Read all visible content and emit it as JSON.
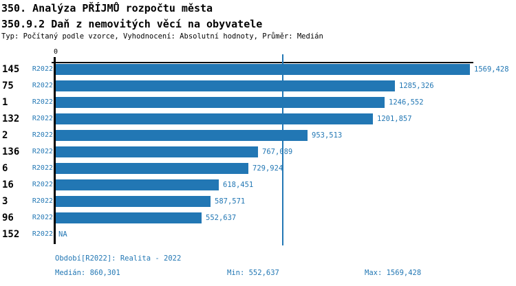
{
  "colors": {
    "accent": "#2277b4",
    "axis": "#000000",
    "background": "#ffffff"
  },
  "header": {
    "title1": "350. Analýza PŘÍJMŮ rozpočtu města",
    "title2": "350.9.2 Daň z nemovitých věcí na obyvatele",
    "meta": "Typ: Počítaný podle vzorce, Vyhodnocení: Absolutní hodnoty, Průměr: Medián"
  },
  "chart_data": {
    "type": "bar",
    "orientation": "horizontal",
    "title": "350.9.2 Daň z nemovitých věcí na obyvatele",
    "axis_zero_label": "0",
    "xlim": [
      0,
      1569.428
    ],
    "grid": false,
    "median_value": 860.301,
    "series_period": "R2022",
    "bar_color": "#2277b4",
    "rows": [
      {
        "id": "145",
        "period": "R2022",
        "value": 1569.428,
        "label": "1569,428"
      },
      {
        "id": "75",
        "period": "R2022",
        "value": 1285.326,
        "label": "1285,326"
      },
      {
        "id": "1",
        "period": "R2022",
        "value": 1246.552,
        "label": "1246,552"
      },
      {
        "id": "132",
        "period": "R2022",
        "value": 1201.857,
        "label": "1201,857"
      },
      {
        "id": "2",
        "period": "R2022",
        "value": 953.513,
        "label": "953,513"
      },
      {
        "id": "136",
        "period": "R2022",
        "value": 767.089,
        "label": "767,089"
      },
      {
        "id": "6",
        "period": "R2022",
        "value": 729.924,
        "label": "729,924"
      },
      {
        "id": "16",
        "period": "R2022",
        "value": 618.451,
        "label": "618,451"
      },
      {
        "id": "3",
        "period": "R2022",
        "value": 587.571,
        "label": "587,571"
      },
      {
        "id": "96",
        "period": "R2022",
        "value": 552.637,
        "label": "552,637"
      },
      {
        "id": "152",
        "period": "R2022",
        "value": null,
        "label": "NA"
      }
    ]
  },
  "footer": {
    "period_line": "Období[R2022]: Realita - 2022",
    "median_label": "Medián: 860,301",
    "min_label": "Min: 552,637",
    "max_label": "Max: 1569,428"
  }
}
